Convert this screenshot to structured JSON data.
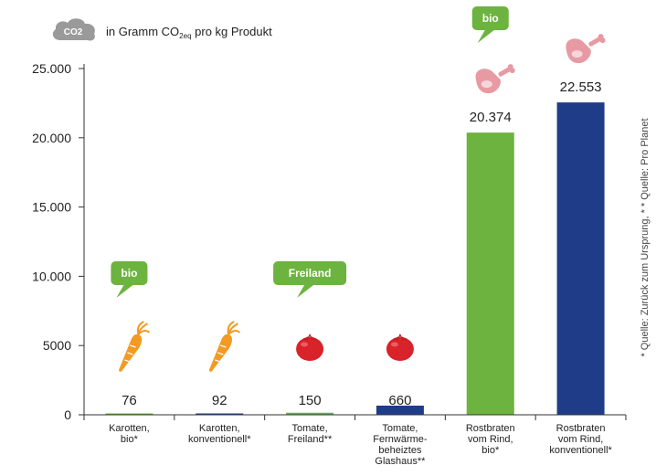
{
  "chart_data": {
    "type": "bar",
    "header": {
      "badge": "CO2",
      "prefix": "in Gramm CO",
      "subscript": "2eq",
      "suffix": " pro kg Produkt"
    },
    "categories": [
      [
        "Karotten,",
        "bio*"
      ],
      [
        "Karotten,",
        "konventionell*"
      ],
      [
        "Tomate,",
        "Freiland**"
      ],
      [
        "Tomate,",
        "Fernwärme-",
        "beheiztes",
        "Glashaus**"
      ],
      [
        "Rostbraten",
        "vom Rind,",
        "bio*"
      ],
      [
        "Rostbraten",
        "vom Rind,",
        "konventionell*"
      ]
    ],
    "values": [
      76,
      92,
      150,
      660,
      20374,
      22553
    ],
    "value_labels": [
      "76",
      "92",
      "150",
      "660",
      "20.374",
      "22.553"
    ],
    "bar_colors": [
      "#6cb33f",
      "#1f3c88",
      "#6cb33f",
      "#1f3c88",
      "#6cb33f",
      "#1f3c88"
    ],
    "icons": [
      "carrot-icon",
      "carrot-icon",
      "tomato-icon",
      "tomato-icon",
      "meat-icon",
      "meat-icon"
    ],
    "callouts": [
      {
        "category_index": 0,
        "text": "bio"
      },
      {
        "category_index": 2,
        "text": "Freiland"
      },
      {
        "category_index": 4,
        "text": "bio"
      }
    ],
    "yticks": [
      0,
      5000,
      10000,
      15000,
      20000,
      25000
    ],
    "ytick_labels": [
      "0",
      "5000",
      "10.000",
      "15.000",
      "20.000",
      "25.000"
    ],
    "ylim": [
      0,
      26000
    ],
    "grid": false,
    "source_note": "* Quelle: Zurück zum Ursprung, * * Quelle: Pro Planet"
  },
  "colors": {
    "green": "#6cb33f",
    "blue": "#1f3c88",
    "axis": "#333333",
    "carrot": "#f39a23",
    "tomato": "#d8232a",
    "meat": "#e89aa2",
    "badge": "#9a9a9a"
  }
}
